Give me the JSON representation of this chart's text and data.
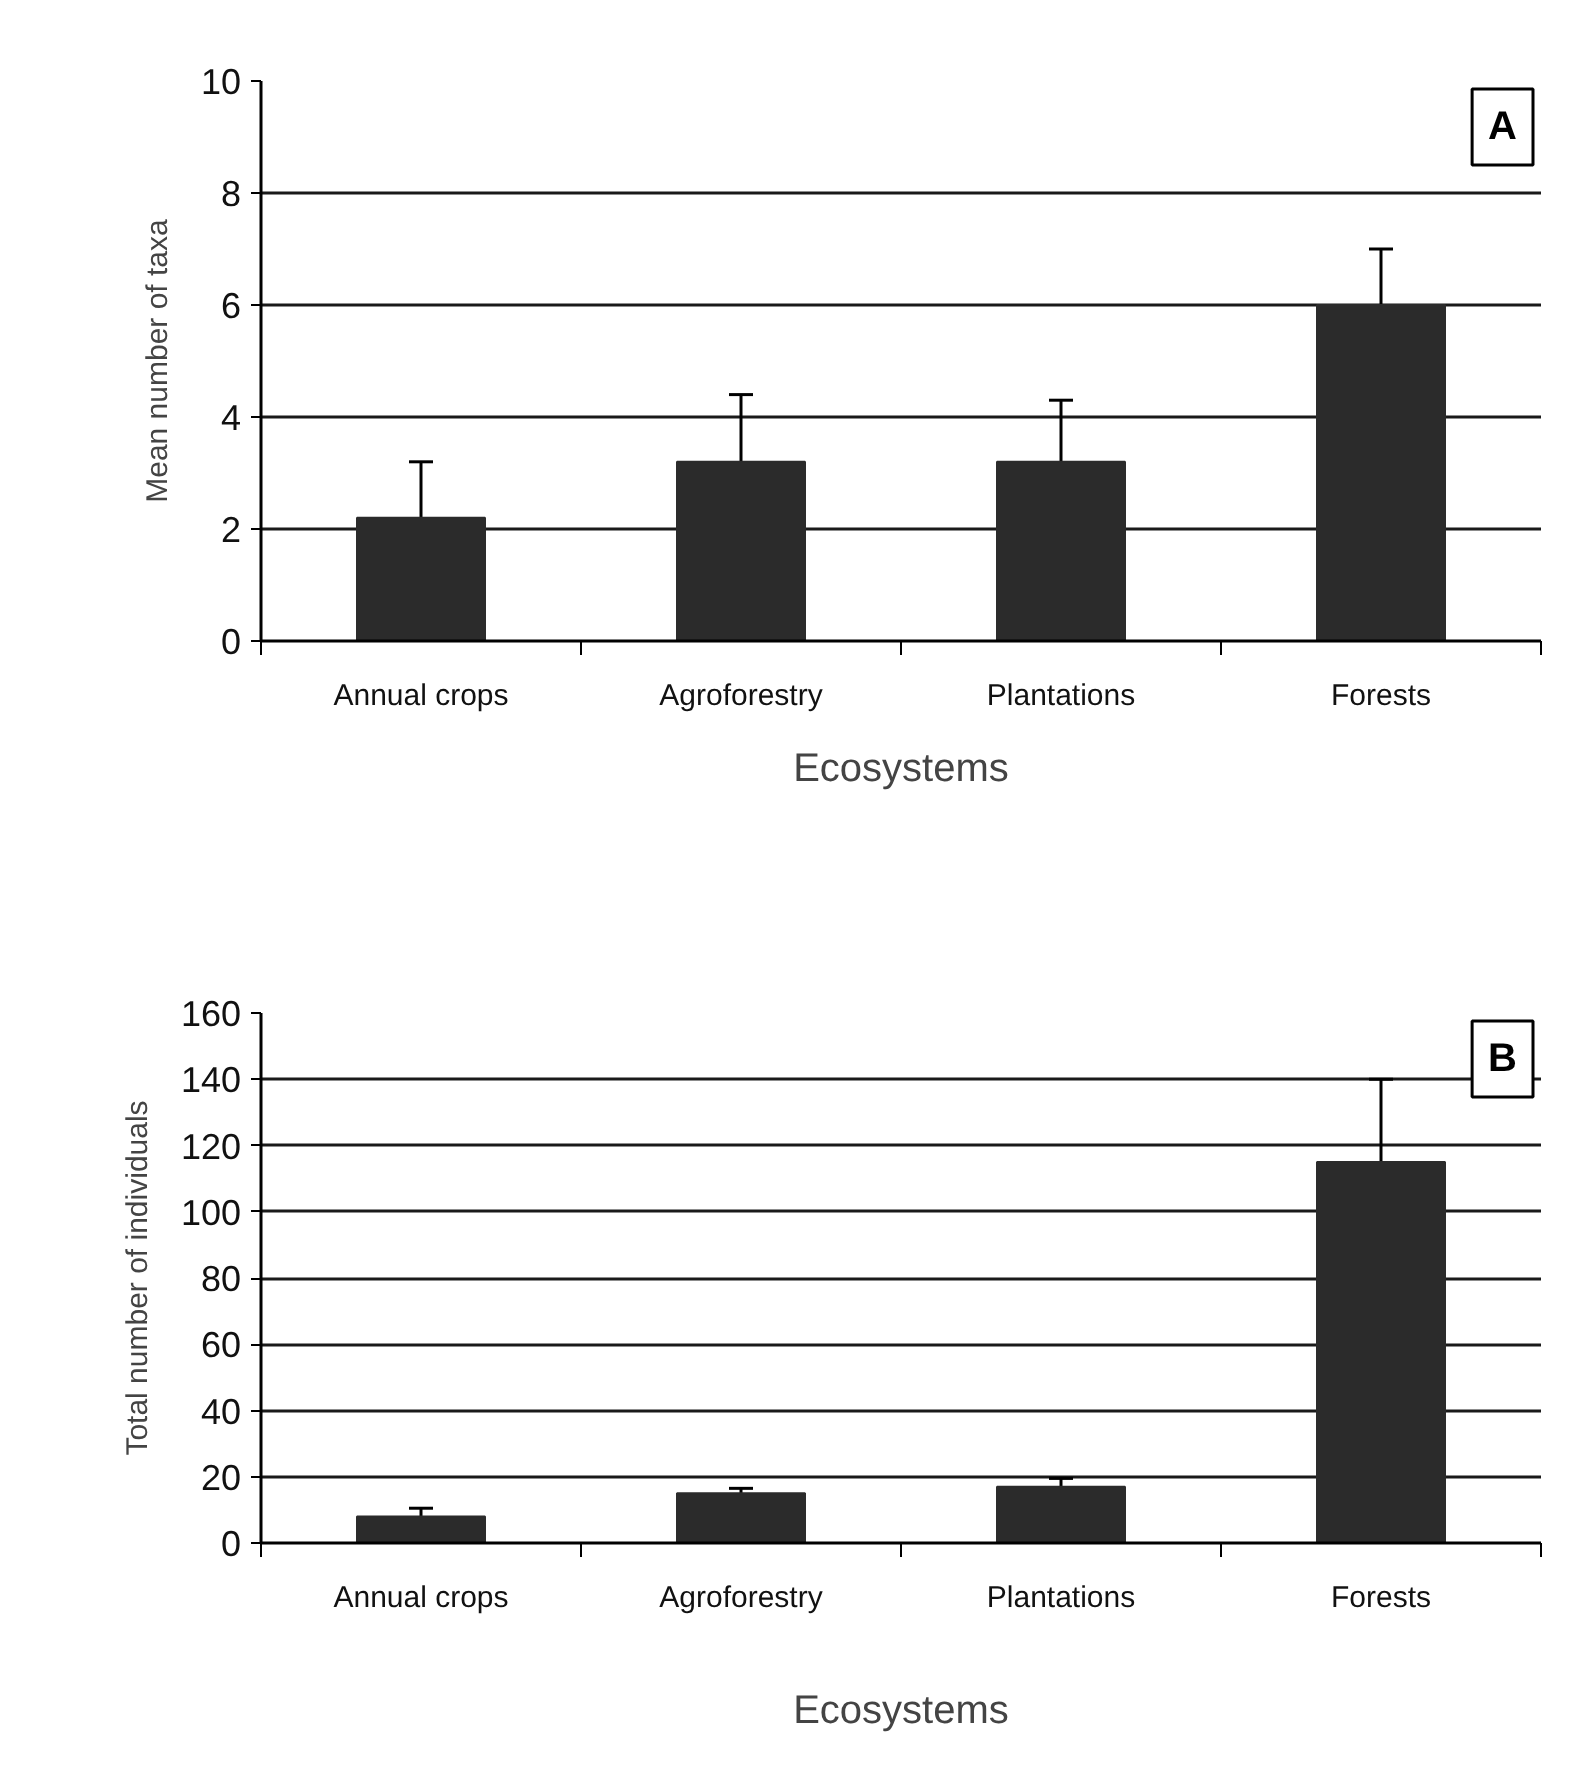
{
  "chart_data": [
    {
      "type": "bar",
      "categories": [
        "Annual crops",
        "Agroforestry",
        "Plantations",
        "Forests"
      ],
      "values": [
        2.2,
        3.2,
        3.2,
        6.0
      ],
      "errors": [
        1.0,
        1.2,
        1.1,
        1.0
      ],
      "color": "#2b2b2b",
      "ylim": [
        0,
        10
      ],
      "yticks": [
        0,
        2,
        4,
        6,
        8,
        10
      ],
      "grid": "y",
      "xlabel": "Ecosystems",
      "ylabel": "Mean number of taxa",
      "annotations": [
        "A"
      ]
    },
    {
      "type": "bar",
      "categories": [
        "Annual crops",
        "Agroforestry",
        "Plantations",
        "Forests"
      ],
      "values": [
        8,
        15,
        17,
        115
      ],
      "errors": [
        2.5,
        1.5,
        2.5,
        25
      ],
      "color": "#2b2b2b",
      "ylim": [
        0,
        160
      ],
      "yticks": [
        0,
        20,
        40,
        60,
        80,
        100,
        120,
        140,
        160
      ],
      "grid": "y",
      "xlabel": "Ecosystems",
      "ylabel": "Total number of individuals",
      "annotations": [
        "B"
      ]
    }
  ]
}
